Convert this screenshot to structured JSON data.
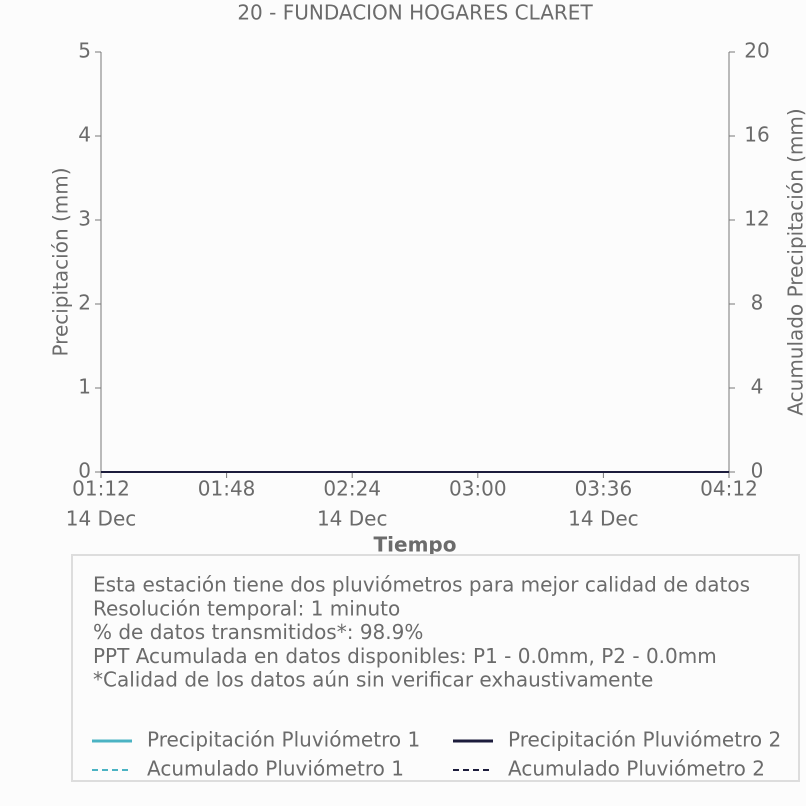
{
  "chart_data": {
    "type": "line",
    "title": "20 - FUNDACION HOGARES CLARET",
    "x_label": "Tiempo",
    "y_label": "Precipitación (mm)",
    "y2_label": "Acumulado Precipitación (mm)",
    "x": [
      "01:12",
      "01:48",
      "02:24",
      "03:00",
      "03:36",
      "04:12"
    ],
    "xlim": [
      "01:12",
      "04:12"
    ],
    "xticks": [
      "01:12",
      "01:48",
      "02:24",
      "03:00",
      "03:36",
      "04:12"
    ],
    "xtick_sublabels": [
      "14 Dec",
      null,
      "14 Dec",
      null,
      "14 Dec",
      null
    ],
    "ylim": [
      0,
      5
    ],
    "yticks": [
      0,
      1,
      2,
      3,
      4,
      5
    ],
    "y2lim": [
      0,
      20
    ],
    "y2ticks": [
      0,
      4,
      8,
      12,
      16,
      20
    ],
    "series": [
      {
        "name": "Precipitación Pluviómetro 1",
        "color": "#4bb3c3",
        "dashed": false,
        "values": [
          0,
          0,
          0,
          0,
          0,
          0
        ]
      },
      {
        "name": "Precipitación Pluviómetro 2",
        "color": "#1c1c3c",
        "dashed": false,
        "values": [
          0,
          0,
          0,
          0,
          0,
          0
        ]
      },
      {
        "name": "Acumulado Pluviómetro 1",
        "color": "#4bb3c3",
        "dashed": true,
        "axis": "y2",
        "values": [
          0,
          0,
          0,
          0,
          0,
          0
        ]
      },
      {
        "name": "Acumulado Pluviómetro 2",
        "color": "#1c1c3c",
        "dashed": true,
        "axis": "y2",
        "values": [
          0,
          0,
          0,
          0,
          0,
          0
        ]
      }
    ],
    "notes": [
      "Esta estación tiene dos pluviómetros para mejor calidad de datos",
      "Resolución temporal: 1 minuto",
      "% de datos transmitidos*: 98.9%",
      "PPT Acumulada en datos disponibles: P1 - 0.0mm, P2 - 0.0mm",
      "*Calidad de los datos aún sin verificar exhaustivamente"
    ]
  }
}
